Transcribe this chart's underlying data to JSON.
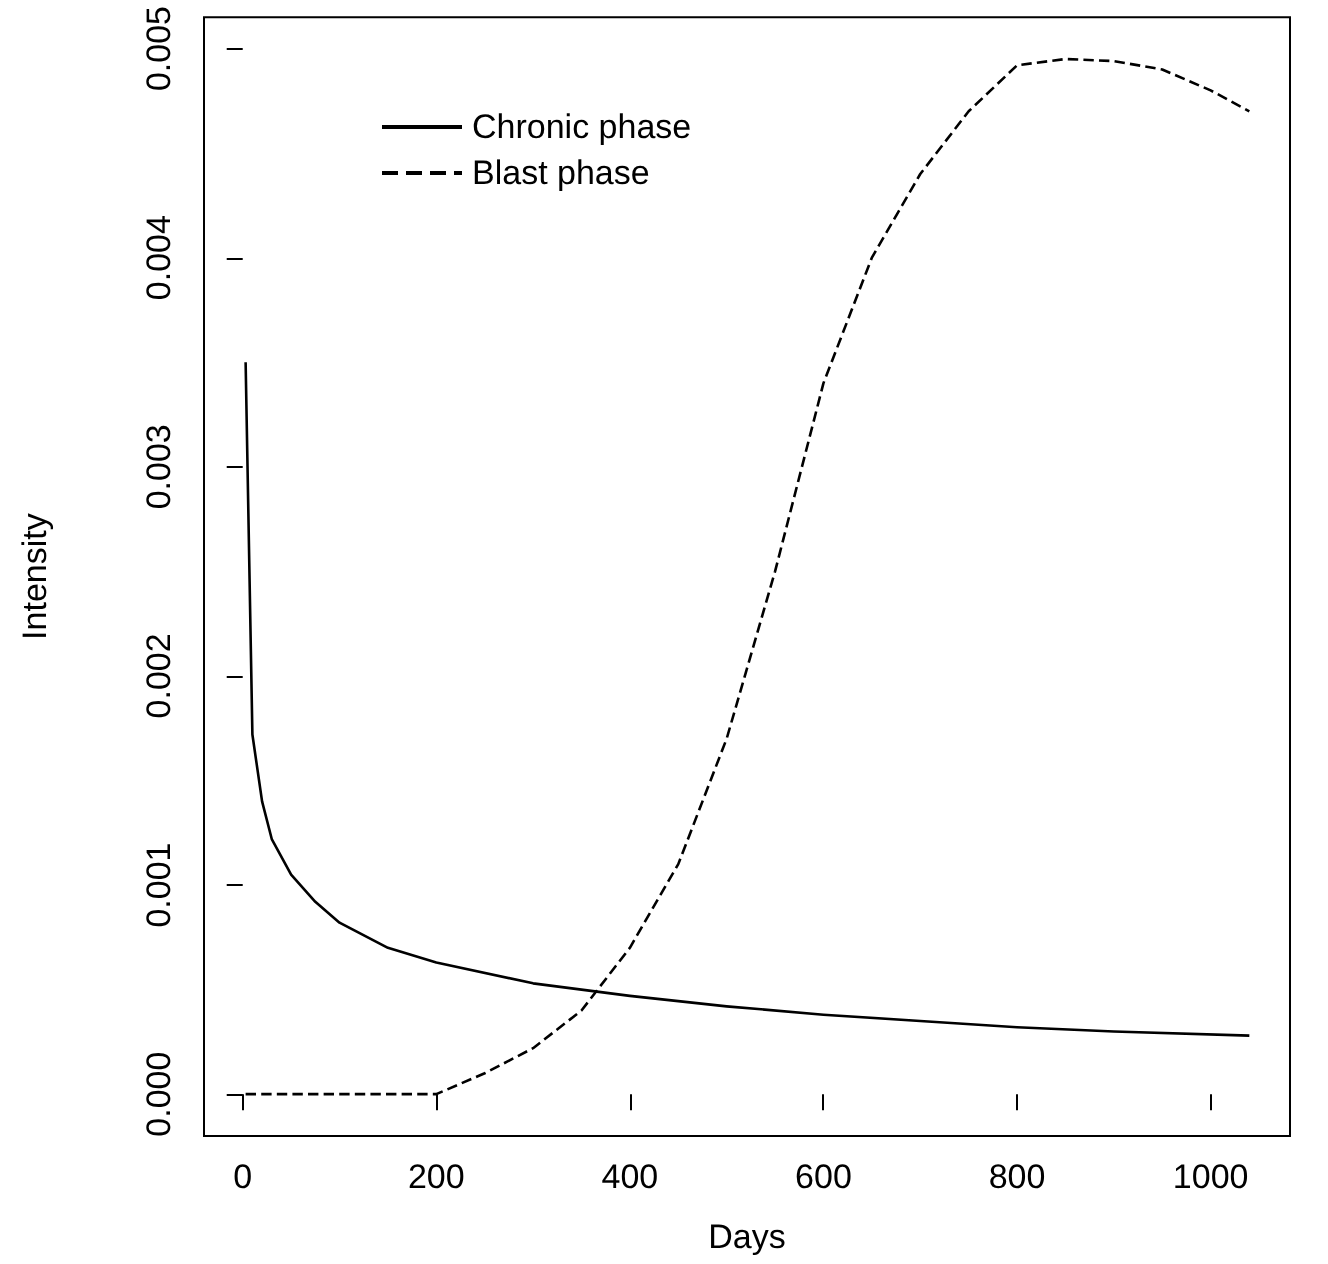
{
  "chart_data": {
    "type": "line",
    "xlabel": "Days",
    "ylabel": "Intensity",
    "xlim": [
      -40,
      1082
    ],
    "ylim": [
      -0.0002,
      0.00515
    ],
    "xticks": [
      0,
      200,
      400,
      600,
      800,
      1000
    ],
    "yticks": [
      {
        "value": 0,
        "label": "0.000"
      },
      {
        "value": 0.001,
        "label": "0.001"
      },
      {
        "value": 0.002,
        "label": "0.002"
      },
      {
        "value": 0.003,
        "label": "0.003"
      },
      {
        "value": 0.004,
        "label": "0.004"
      },
      {
        "value": 0.005,
        "label": "0.005"
      }
    ],
    "grid": false,
    "legend": "top left",
    "marker": "none",
    "series": [
      {
        "name": "Chronic phase",
        "color": "#000000",
        "line_style": "solid",
        "x": [
          3,
          10,
          20,
          30,
          50,
          75,
          100,
          150,
          200,
          300,
          400,
          500,
          600,
          700,
          800,
          900,
          1040
        ],
        "values": [
          0.0035,
          0.00172,
          0.0014,
          0.00122,
          0.00105,
          0.00092,
          0.00082,
          0.0007,
          0.00063,
          0.00053,
          0.00047,
          0.00042,
          0.00038,
          0.00035,
          0.00032,
          0.0003,
          0.00028
        ]
      },
      {
        "name": "Blast phase",
        "color": "#000000",
        "line_style": "dashed",
        "x": [
          3,
          50,
          100,
          150,
          200,
          250,
          300,
          350,
          400,
          450,
          500,
          550,
          600,
          650,
          700,
          750,
          800,
          850,
          900,
          950,
          1000,
          1040
        ],
        "values": [
          0,
          0,
          0,
          0,
          0,
          0.0001,
          0.00022,
          0.0004,
          0.0007,
          0.0011,
          0.0017,
          0.0025,
          0.0034,
          0.004,
          0.0044,
          0.0047,
          0.00492,
          0.00495,
          0.00494,
          0.0049,
          0.0048,
          0.0047
        ]
      }
    ]
  }
}
